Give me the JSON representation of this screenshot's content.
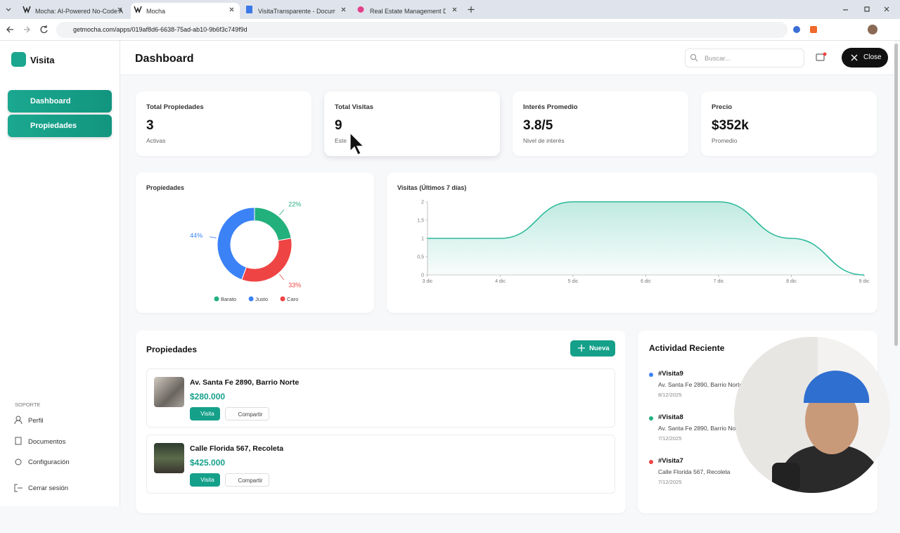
{
  "browser": {
    "tabs": [
      "Mocha: AI-Powered No-Code A",
      "Mocha",
      "VisitaTransparente - Documen",
      "Real Estate Management Dash"
    ],
    "url": "getmocha.com/apps/019af8d6-6638-75ad-ab10-9b6f3c749f9d"
  },
  "sidebar": {
    "brand": "Visita",
    "nav": [
      "Dashboard",
      "Propiedades"
    ],
    "section": "SOPORTE",
    "links": [
      "Perfil",
      "Documentos",
      "Configuración",
      "Cerrar sesión"
    ]
  },
  "header": {
    "title": "Dashboard",
    "search": "Buscar...",
    "close": "Close"
  },
  "stats": [
    {
      "label": "Total Propiedades",
      "value": "3",
      "note": "Activas"
    },
    {
      "label": "Total Visitas",
      "value": "9",
      "note": "Este"
    },
    {
      "label": "Interés Promedio",
      "value": "3.8/5",
      "note": "Nivel de interés"
    },
    {
      "label": "Precio",
      "value": "$352k",
      "note": "Promedio"
    }
  ],
  "chart_data": [
    {
      "type": "donut",
      "title": "Propiedades",
      "categories": [
        "Barato",
        "Justo",
        "Caro"
      ],
      "values": [
        22,
        44,
        33
      ],
      "value_labels": [
        "22%",
        "44%",
        "33%"
      ],
      "colors": [
        "#22b07d",
        "#3b82f6",
        "#ef4444"
      ]
    },
    {
      "type": "area",
      "title": "Visitas (Últimos 7 días)",
      "categories": [
        "3 dic",
        "4 dic",
        "5 dic",
        "6 dic",
        "7 dic",
        "8 dic",
        "9 dic"
      ],
      "values": [
        1,
        1,
        2,
        2,
        2,
        1,
        0
      ],
      "color": "#2bb99a",
      "ylim": [
        0,
        2
      ],
      "yticks": [
        0,
        {
          "value": 0.5,
          "label": "0,5"
        },
        1,
        {
          "value": 1.5,
          "label": "1,5"
        },
        2
      ]
    }
  ],
  "properties": {
    "title": "Propiedades",
    "new": "Nueva",
    "items": [
      {
        "name": "Av. Santa Fe 2890, Barrio Norte",
        "price": "$280.000",
        "visit": "Visita",
        "share": "Compartir"
      },
      {
        "name": "Calle Florida 567, Recoleta",
        "price": "$425.000",
        "visit": "Visita",
        "share": "Compartir"
      }
    ]
  },
  "activity": {
    "title": "Actividad Reciente",
    "items": [
      {
        "id": "#Visita9",
        "address": "Av. Santa Fe 2890, Barrio Norte",
        "date": "8/12/2025",
        "color": "#3b82f6"
      },
      {
        "id": "#Visita8",
        "address": "Av. Santa Fe 2890, Barrio Norte",
        "date": "7/12/2025",
        "color": "#22b07d"
      },
      {
        "id": "#Visita7",
        "address": "Calle Florida 567, Recoleta",
        "date": "7/12/2025",
        "color": "#ef4444"
      }
    ]
  }
}
